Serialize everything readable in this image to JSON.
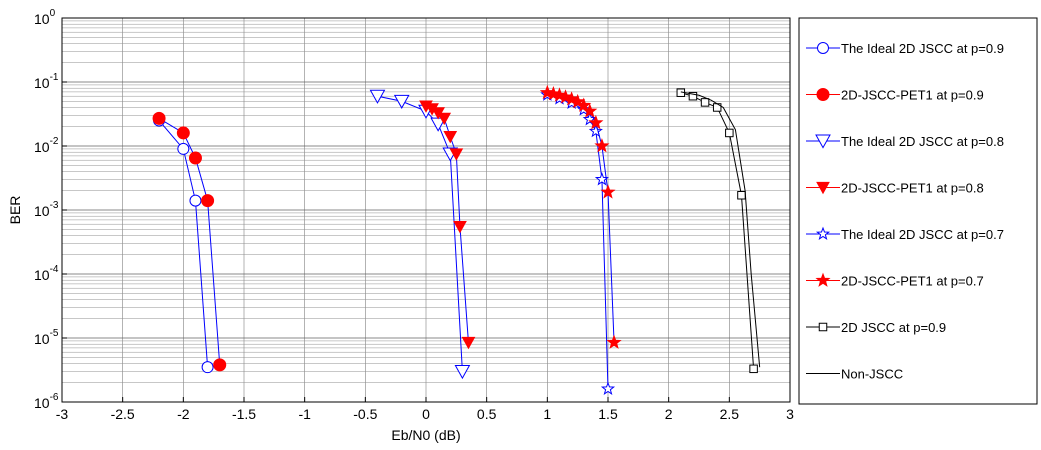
{
  "chart_data": {
    "type": "line",
    "xlabel": "Eb/N0 (dB)",
    "ylabel": "BER",
    "xlim": [
      -3,
      3
    ],
    "ylim": [
      1e-06,
      1
    ],
    "yscale": "log",
    "grid": true,
    "legend_position": "outside-right",
    "x_ticks": [
      "-3",
      "-2.5",
      "-2",
      "-1.5",
      "-1",
      "-0.5",
      "0",
      "0.5",
      "1",
      "1.5",
      "2",
      "2.5",
      "3"
    ],
    "x_tick_values": [
      -3,
      -2.5,
      -2,
      -1.5,
      -1,
      -0.5,
      0,
      0.5,
      1,
      1.5,
      2,
      2.5,
      3
    ],
    "y_ticks": [
      {
        "base": "10",
        "exp": "-6"
      },
      {
        "base": "10",
        "exp": "-5"
      },
      {
        "base": "10",
        "exp": "-4"
      },
      {
        "base": "10",
        "exp": "-3"
      },
      {
        "base": "10",
        "exp": "-2"
      },
      {
        "base": "10",
        "exp": "-1"
      },
      {
        "base": "10",
        "exp": "0"
      }
    ],
    "y_tick_exponents": [
      -6,
      -5,
      -4,
      -3,
      -2,
      -1,
      0
    ],
    "series": [
      {
        "name": "The Ideal 2D JSCC at p=0.9",
        "color": "#0000ff",
        "marker": "circle",
        "filled": false,
        "line_color": "#0000ff",
        "x": [
          -2.2,
          -2.0,
          -1.9,
          -1.8
        ],
        "y": [
          0.025,
          0.009,
          0.0014,
          3.5e-06
        ]
      },
      {
        "name": "2D-JSCC-PET1 at p=0.9",
        "color": "#ff0000",
        "marker": "circle",
        "filled": true,
        "line_color": "#0000ff",
        "x": [
          -2.2,
          -2.0,
          -1.9,
          -1.8,
          -1.7
        ],
        "y": [
          0.027,
          0.016,
          0.0065,
          0.0014,
          3.8e-06
        ]
      },
      {
        "name": "The Ideal 2D JSCC at p=0.8",
        "color": "#0000ff",
        "marker": "triangle-down",
        "filled": false,
        "line_color": "#0000ff",
        "x": [
          -0.4,
          -0.2,
          0.0,
          0.1,
          0.2,
          0.3
        ],
        "y": [
          0.06,
          0.05,
          0.035,
          0.022,
          0.0075,
          3e-06
        ]
      },
      {
        "name": "2D-JSCC-PET1 at p=0.8",
        "color": "#ff0000",
        "marker": "triangle-down",
        "filled": true,
        "line_color": "#0000ff",
        "x": [
          0.0,
          0.05,
          0.1,
          0.15,
          0.2,
          0.25,
          0.28,
          0.35
        ],
        "y": [
          0.042,
          0.038,
          0.033,
          0.027,
          0.014,
          0.0075,
          0.00055,
          8.5e-06
        ]
      },
      {
        "name": "The Ideal 2D JSCC at p=0.7",
        "color": "#0000ff",
        "marker": "star",
        "filled": false,
        "line_color": "#0000ff",
        "x": [
          1.0,
          1.1,
          1.2,
          1.3,
          1.35,
          1.4,
          1.45,
          1.5
        ],
        "y": [
          0.063,
          0.055,
          0.047,
          0.037,
          0.026,
          0.017,
          0.003,
          1.6e-06
        ]
      },
      {
        "name": "2D-JSCC-PET1 at p=0.7",
        "color": "#ff0000",
        "marker": "star",
        "filled": true,
        "line_color": "#0000ff",
        "x": [
          1.0,
          1.05,
          1.1,
          1.15,
          1.2,
          1.25,
          1.3,
          1.35,
          1.4,
          1.45,
          1.5,
          1.55
        ],
        "y": [
          0.068,
          0.065,
          0.062,
          0.058,
          0.054,
          0.049,
          0.043,
          0.035,
          0.023,
          0.01,
          0.0019,
          8.5e-06
        ]
      },
      {
        "name": "2D JSCC  at p=0.9",
        "color": "#000000",
        "marker": "square",
        "filled": false,
        "line_color": "#000000",
        "x": [
          2.1,
          2.2,
          2.3,
          2.4,
          2.5,
          2.6,
          2.7
        ],
        "y": [
          0.068,
          0.06,
          0.048,
          0.04,
          0.016,
          0.0017,
          3.3e-06
        ]
      },
      {
        "name": "Non-JSCC",
        "color": "#000000",
        "marker": "none",
        "filled": false,
        "line_color": "#000000",
        "x": [
          2.1,
          2.25,
          2.35,
          2.45,
          2.55,
          2.63,
          2.68,
          2.75
        ],
        "y": [
          0.07,
          0.062,
          0.052,
          0.04,
          0.018,
          0.002,
          0.0001,
          3.5e-06
        ]
      }
    ]
  }
}
